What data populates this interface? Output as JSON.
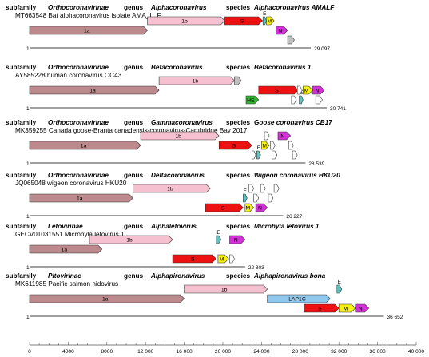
{
  "genome_max": 40000,
  "scale_ticks": [
    "0",
    "4000",
    "8000",
    "12 000",
    "16 000",
    "20 000",
    "24 000",
    "28 000",
    "32 000",
    "36 000",
    "40 000"
  ],
  "colors": {
    "ORF1a": "#bc8a8c",
    "ORF1b": "#f5c0cf",
    "S": "#ee1111",
    "E": "#5fc3c1",
    "M": "#f6f014",
    "N": "#d431d8",
    "HE": "#36b436",
    "LAP1C": "#8ec8ee",
    "ORF": "#bfbfbf",
    "accessory": "#ffffff",
    "line": "#000000"
  },
  "genomes": [
    {
      "subfamily_label": "subfamily",
      "subfamily": "Orthocoronavirinae",
      "genus_label": "genus",
      "genus": "Alphacoronavirus",
      "species_label": "species",
      "species": "Alphacoronavirus AMALF",
      "accession": "MT663548 Bat alphacoronavirus isolate AMA_L_F",
      "start_label": "1",
      "length_label": "29 097",
      "length": 29097,
      "genes": [
        {
          "label": "1a",
          "start": 1,
          "end": 12200,
          "row": 0,
          "color": "ORF1a"
        },
        {
          "label": "1b",
          "start": 12200,
          "end": 20200,
          "row": -1,
          "color": "ORF1b"
        },
        {
          "label": "S",
          "start": 20200,
          "end": 24100,
          "row": -1,
          "color": "S"
        },
        {
          "label": "E",
          "start": 24150,
          "end": 24500,
          "row": -1,
          "color": "E",
          "above": true
        },
        {
          "label": "M",
          "start": 24500,
          "end": 25300,
          "row": -1,
          "color": "M"
        },
        {
          "label": "N",
          "start": 25500,
          "end": 26700,
          "row": 0,
          "color": "N"
        },
        {
          "label": "",
          "start": 26700,
          "end": 27400,
          "row": 1,
          "color": "ORF"
        }
      ]
    },
    {
      "subfamily_label": "subfamily",
      "subfamily": "Orthocoronavirinae",
      "genus_label": "genus",
      "genus": "Betacoronavirus",
      "species_label": "species",
      "species": "Betacoronavirus 1",
      "accession": "AY585228 human coronavirus OC43",
      "start_label": "1",
      "length_label": "30 741",
      "length": 30741,
      "genes": [
        {
          "label": "1a",
          "start": 1,
          "end": 13400,
          "row": 0,
          "color": "ORF1a"
        },
        {
          "label": "1b",
          "start": 13400,
          "end": 21200,
          "row": -1,
          "color": "ORF1b"
        },
        {
          "label": "",
          "start": 21200,
          "end": 21900,
          "row": -1,
          "color": "ORF"
        },
        {
          "label": "HE",
          "start": 22400,
          "end": 23700,
          "row": 1,
          "color": "HE"
        },
        {
          "label": "S",
          "start": 23700,
          "end": 27800,
          "row": 0,
          "color": "S"
        },
        {
          "label": "E",
          "start": 27900,
          "end": 28300,
          "row": 1,
          "color": "E"
        },
        {
          "label": "M",
          "start": 28300,
          "end": 29300,
          "row": 0,
          "color": "M"
        },
        {
          "label": "N",
          "start": 29300,
          "end": 30500,
          "row": 0,
          "color": "N"
        },
        {
          "label": "",
          "start": 27100,
          "end": 27600,
          "row": 1,
          "color": "accessory"
        },
        {
          "label": "",
          "start": 27700,
          "end": 28200,
          "row": 0,
          "color": "accessory"
        },
        {
          "label": "",
          "start": 29600,
          "end": 30300,
          "row": 1,
          "color": "accessory"
        }
      ]
    },
    {
      "subfamily_label": "subfamily",
      "subfamily": "Orthocoronavirinae",
      "genus_label": "genus",
      "genus": "Gammacoronavirus",
      "species_label": "species",
      "species": "Goose coronavirus CB17",
      "accession": "MK359255 Canada goose-Branta canadensis-coronavirus-Cambridge Bay 2017",
      "start_label": "1",
      "length_label": "28 539",
      "length": 28539,
      "genes": [
        {
          "label": "1a",
          "start": 1,
          "end": 11500,
          "row": 0,
          "color": "ORF1a"
        },
        {
          "label": "1b",
          "start": 11500,
          "end": 19600,
          "row": -1,
          "color": "ORF1b"
        },
        {
          "label": "S",
          "start": 19600,
          "end": 23000,
          "row": 0,
          "color": "S"
        },
        {
          "label": "",
          "start": 23000,
          "end": 23400,
          "row": 1,
          "color": "accessory"
        },
        {
          "label": "E",
          "start": 23500,
          "end": 23900,
          "row": 1,
          "color": "E"
        },
        {
          "label": "M",
          "start": 24000,
          "end": 24800,
          "row": 0,
          "color": "M"
        },
        {
          "label": "",
          "start": 24300,
          "end": 24800,
          "row": -1,
          "color": "accessory"
        },
        {
          "label": "",
          "start": 24900,
          "end": 25400,
          "row": 0,
          "color": "accessory"
        },
        {
          "label": "",
          "start": 25100,
          "end": 25600,
          "row": 1,
          "color": "accessory"
        },
        {
          "label": "N",
          "start": 25700,
          "end": 27000,
          "row": -1,
          "color": "N"
        },
        {
          "label": "",
          "start": 26800,
          "end": 27300,
          "row": 0,
          "color": "accessory"
        },
        {
          "label": "",
          "start": 27200,
          "end": 27700,
          "row": 1,
          "color": "accessory"
        }
      ]
    },
    {
      "subfamily_label": "subfamily",
      "subfamily": "Orthocoronavirinae",
      "genus_label": "genus",
      "genus": "Deltacoronavirus",
      "species_label": "species",
      "species": "Wigeon coronavirus HKU20",
      "accession": "JQ065048 wigeon coronavirus HKU20",
      "start_label": "1",
      "length_label": "26 227",
      "length": 26227,
      "genes": [
        {
          "label": "1a",
          "start": 1,
          "end": 10700,
          "row": 0,
          "color": "ORF1a"
        },
        {
          "label": "1b",
          "start": 10700,
          "end": 18700,
          "row": -1,
          "color": "ORF1b"
        },
        {
          "label": "S",
          "start": 18200,
          "end": 22100,
          "row": 1,
          "color": "S"
        },
        {
          "label": "E",
          "start": 22100,
          "end": 22500,
          "row": 0,
          "color": "E",
          "above": true
        },
        {
          "label": "M",
          "start": 22300,
          "end": 23200,
          "row": 1,
          "color": "M"
        },
        {
          "label": "",
          "start": 22700,
          "end": 23200,
          "row": -1,
          "color": "accessory"
        },
        {
          "label": "",
          "start": 23200,
          "end": 23700,
          "row": 0,
          "color": "accessory"
        },
        {
          "label": "N",
          "start": 23400,
          "end": 24600,
          "row": 1,
          "color": "N"
        },
        {
          "label": "",
          "start": 23900,
          "end": 24400,
          "row": -1,
          "color": "accessory"
        },
        {
          "label": "",
          "start": 24700,
          "end": 25200,
          "row": 0,
          "color": "accessory"
        },
        {
          "label": "",
          "start": 25300,
          "end": 25800,
          "row": -1,
          "color": "accessory"
        }
      ]
    },
    {
      "subfamily_label": "subfamily",
      "subfamily": "Letovirinae",
      "genus_label": "genus",
      "genus": "Alphaletovirus",
      "species_label": "species",
      "species": "Microhyla letovirus 1",
      "accession": "GECV01031551 Microhyla letovirus 1",
      "start_label": "1",
      "length_label": "22 303",
      "length": 22303,
      "genes": [
        {
          "label": "1a",
          "start": 1,
          "end": 7500,
          "row": 0,
          "color": "ORF1a"
        },
        {
          "label": "1b",
          "start": 6200,
          "end": 14800,
          "row": -1,
          "color": "ORF1b"
        },
        {
          "label": "S",
          "start": 14800,
          "end": 19300,
          "row": 1,
          "color": "S"
        },
        {
          "label": "E",
          "start": 19300,
          "end": 19800,
          "row": -1,
          "color": "E",
          "above": true
        },
        {
          "label": "M",
          "start": 19500,
          "end": 20600,
          "row": 1,
          "color": "M"
        },
        {
          "label": "N",
          "start": 20700,
          "end": 22300,
          "row": -1,
          "color": "N"
        },
        {
          "label": "",
          "start": 20700,
          "end": 21200,
          "row": 1,
          "color": "accessory"
        }
      ]
    },
    {
      "subfamily_label": "subfamily",
      "subfamily": "Pitovirinae",
      "genus_label": "genus",
      "genus": "Alphapironavirus",
      "species_label": "species",
      "species": "Alphapironavirus bona",
      "accession": "MK611985 Pacific salmon nidovirus",
      "start_label": "1",
      "length_label": "36 652",
      "length": 36652,
      "genes": [
        {
          "label": "1a",
          "start": 1,
          "end": 16000,
          "row": 0,
          "color": "ORF1a"
        },
        {
          "label": "1b",
          "start": 16000,
          "end": 24600,
          "row": -1,
          "color": "ORF1b"
        },
        {
          "label": "LAP1C",
          "start": 24600,
          "end": 31100,
          "row": 0,
          "color": "LAP1C"
        },
        {
          "label": "S",
          "start": 28400,
          "end": 32000,
          "row": 1,
          "color": "S"
        },
        {
          "label": "E",
          "start": 31800,
          "end": 32300,
          "row": -1,
          "color": "E",
          "above": true
        },
        {
          "label": "M",
          "start": 32000,
          "end": 33700,
          "row": 1,
          "color": "M"
        },
        {
          "label": "N",
          "start": 33700,
          "end": 35100,
          "row": 1,
          "color": "N"
        }
      ]
    }
  ]
}
